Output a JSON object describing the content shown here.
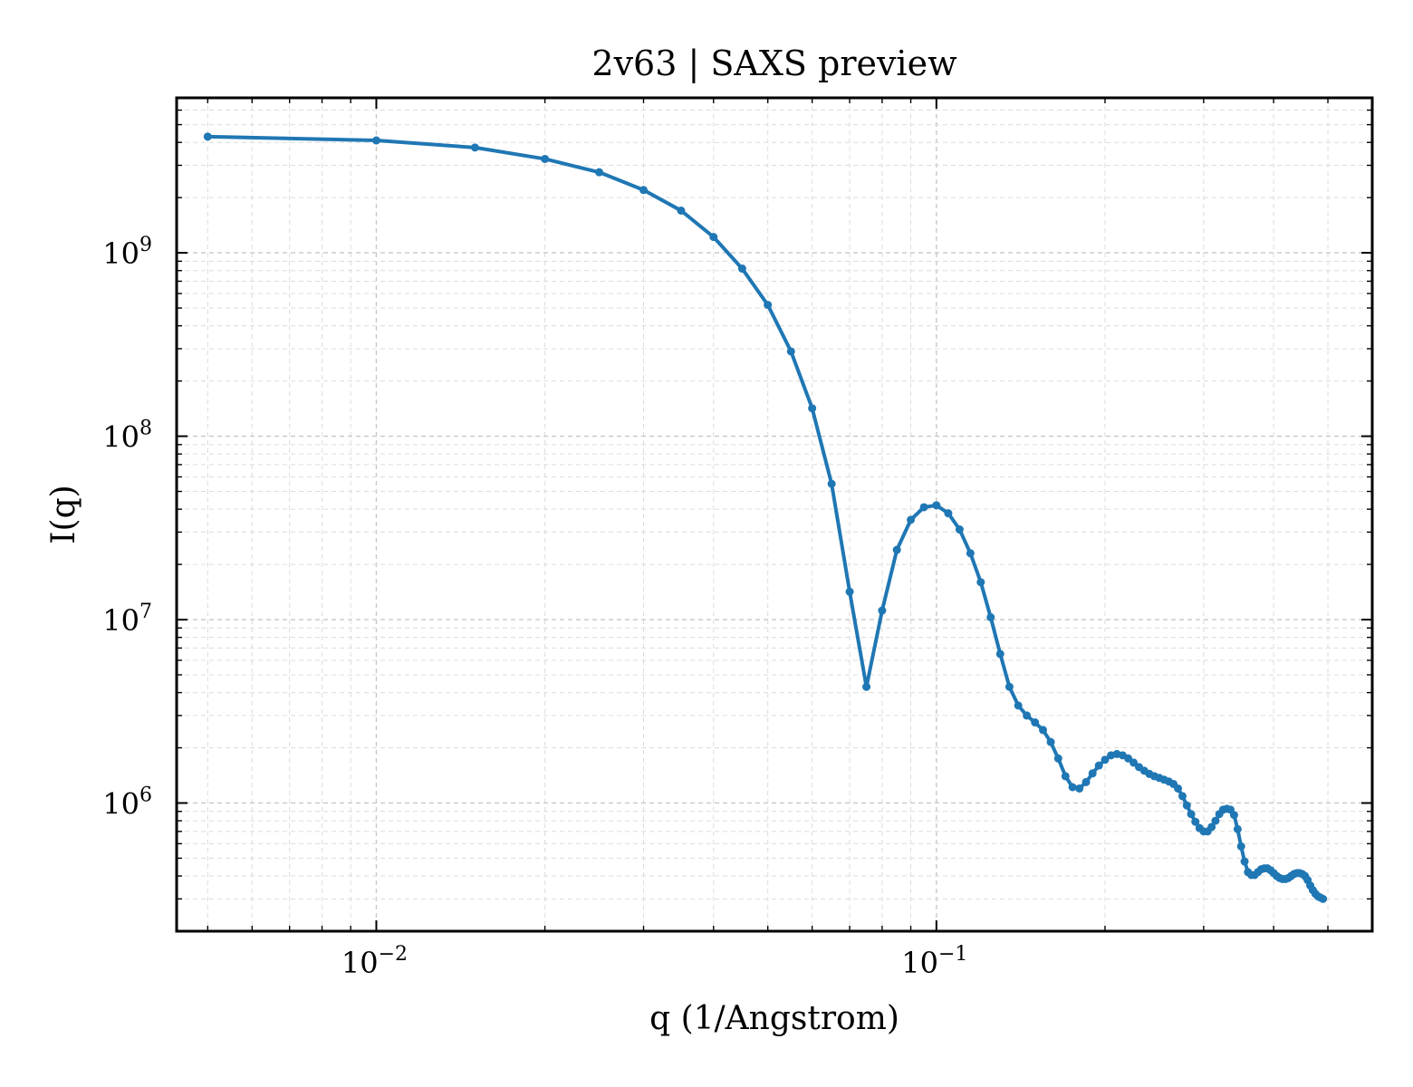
{
  "chart_data": {
    "type": "line",
    "title": "2v63 | SAXS preview",
    "xlabel": "q (1/Angstrom)",
    "ylabel": "I(q)",
    "xscale": "log",
    "yscale": "log",
    "xlim": [
      0.0044,
      0.6
    ],
    "ylim": [
      200000,
      7000000000
    ],
    "grid": true,
    "x_tick_labels": [
      {
        "value": 0.01,
        "base": "10",
        "exp": "−2"
      },
      {
        "value": 0.1,
        "base": "10",
        "exp": "−1"
      }
    ],
    "y_tick_labels": [
      {
        "value": 1000000,
        "base": "10",
        "exp": "6"
      },
      {
        "value": 10000000,
        "base": "10",
        "exp": "7"
      },
      {
        "value": 100000000,
        "base": "10",
        "exp": "8"
      },
      {
        "value": 1000000000,
        "base": "10",
        "exp": "9"
      }
    ],
    "series": [
      {
        "color": "#1f77b4",
        "points": [
          [
            0.005,
            4300000000.0
          ],
          [
            0.01,
            4100000000.0
          ],
          [
            0.015,
            3750000000.0
          ],
          [
            0.02,
            3250000000.0
          ],
          [
            0.025,
            2750000000.0
          ],
          [
            0.03,
            2200000000.0
          ],
          [
            0.035,
            1700000000.0
          ],
          [
            0.04,
            1220000000.0
          ],
          [
            0.045,
            820000000.0
          ],
          [
            0.05,
            520000000.0
          ],
          [
            0.055,
            290000000.0
          ],
          [
            0.06,
            142000000.0
          ],
          [
            0.065,
            55000000.0
          ],
          [
            0.07,
            14200000.0
          ],
          [
            0.075,
            4300000.0
          ],
          [
            0.08,
            11200000.0
          ],
          [
            0.085,
            24000000.0
          ],
          [
            0.09,
            35000000.0
          ],
          [
            0.095,
            41000000.0
          ],
          [
            0.1,
            42000000.0
          ],
          [
            0.105,
            38000000.0
          ],
          [
            0.11,
            31000000.0
          ],
          [
            0.115,
            23000000.0
          ],
          [
            0.12,
            16000000.0
          ],
          [
            0.125,
            10300000.0
          ],
          [
            0.13,
            6500000.0
          ],
          [
            0.135,
            4300000.0
          ],
          [
            0.14,
            3400000.0
          ],
          [
            0.145,
            3000000.0
          ],
          [
            0.15,
            2750000.0
          ],
          [
            0.155,
            2500000.0
          ],
          [
            0.16,
            2150000.0
          ],
          [
            0.165,
            1750000.0
          ],
          [
            0.17,
            1400000.0
          ],
          [
            0.175,
            1220000.0
          ],
          [
            0.18,
            1200000.0
          ],
          [
            0.185,
            1300000.0
          ],
          [
            0.19,
            1450000.0
          ],
          [
            0.195,
            1600000.0
          ],
          [
            0.2,
            1720000.0
          ],
          [
            0.205,
            1820000.0
          ],
          [
            0.21,
            1850000.0
          ],
          [
            0.215,
            1820000.0
          ],
          [
            0.22,
            1750000.0
          ],
          [
            0.225,
            1660000.0
          ],
          [
            0.23,
            1570000.0
          ],
          [
            0.235,
            1500000.0
          ],
          [
            0.24,
            1440000.0
          ],
          [
            0.245,
            1400000.0
          ],
          [
            0.25,
            1370000.0
          ],
          [
            0.255,
            1340000.0
          ],
          [
            0.26,
            1310000.0
          ],
          [
            0.265,
            1270000.0
          ],
          [
            0.27,
            1200000.0
          ],
          [
            0.275,
            1090000.0
          ],
          [
            0.28,
            970000.0
          ],
          [
            0.285,
            870000.0
          ],
          [
            0.29,
            790000.0
          ],
          [
            0.295,
            730000.0
          ],
          [
            0.3,
            700000.0
          ],
          [
            0.305,
            700000.0
          ],
          [
            0.31,
            740000.0
          ],
          [
            0.315,
            800000.0
          ],
          [
            0.32,
            870000.0
          ],
          [
            0.325,
            920000.0
          ],
          [
            0.33,
            930000.0
          ],
          [
            0.335,
            920000.0
          ],
          [
            0.34,
            860000.0
          ],
          [
            0.345,
            720000.0
          ],
          [
            0.35,
            580000.0
          ],
          [
            0.355,
            480000.0
          ],
          [
            0.36,
            420000.0
          ],
          [
            0.365,
            405000.0
          ],
          [
            0.37,
            405000.0
          ],
          [
            0.375,
            420000.0
          ],
          [
            0.38,
            435000.0
          ],
          [
            0.385,
            440000.0
          ],
          [
            0.39,
            440000.0
          ],
          [
            0.395,
            430000.0
          ],
          [
            0.4,
            415000.0
          ],
          [
            0.405,
            400000.0
          ],
          [
            0.41,
            390000.0
          ],
          [
            0.415,
            385000.0
          ],
          [
            0.42,
            385000.0
          ],
          [
            0.425,
            390000.0
          ],
          [
            0.43,
            400000.0
          ],
          [
            0.435,
            410000.0
          ],
          [
            0.44,
            415000.0
          ],
          [
            0.445,
            415000.0
          ],
          [
            0.45,
            410000.0
          ],
          [
            0.455,
            400000.0
          ],
          [
            0.46,
            380000.0
          ],
          [
            0.465,
            355000.0
          ],
          [
            0.47,
            335000.0
          ],
          [
            0.475,
            320000.0
          ],
          [
            0.48,
            310000.0
          ],
          [
            0.485,
            305000.0
          ],
          [
            0.49,
            300000.0
          ]
        ]
      }
    ]
  }
}
